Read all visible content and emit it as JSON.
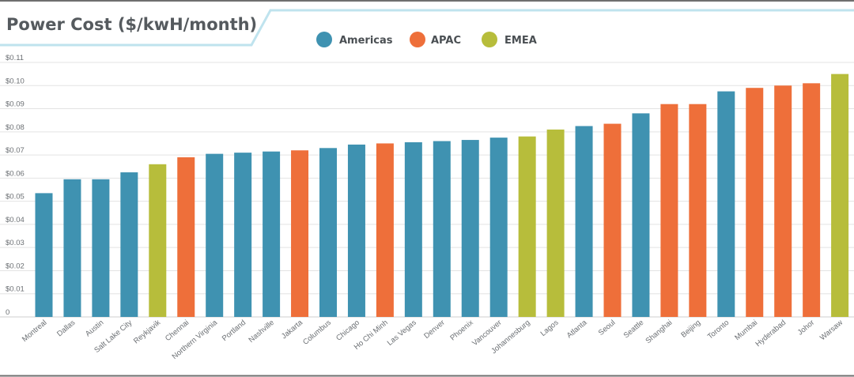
{
  "chart_data": {
    "type": "bar",
    "title": "Power Cost ($/kwH/month)",
    "xlabel": "",
    "ylabel": "",
    "ylim": [
      0,
      0.11
    ],
    "grid": true,
    "legend_position": "top-center",
    "yticks": [
      {
        "value": 0,
        "label": "0"
      },
      {
        "value": 0.01,
        "label": "$0.01"
      },
      {
        "value": 0.02,
        "label": "$0.02"
      },
      {
        "value": 0.03,
        "label": "$0.03"
      },
      {
        "value": 0.04,
        "label": "$0.04"
      },
      {
        "value": 0.05,
        "label": "$0.05"
      },
      {
        "value": 0.06,
        "label": "$0.06"
      },
      {
        "value": 0.07,
        "label": "$0.07"
      },
      {
        "value": 0.08,
        "label": "$0.08"
      },
      {
        "value": 0.09,
        "label": "$0.09"
      },
      {
        "value": 0.1,
        "label": "$0.10"
      },
      {
        "value": 0.11,
        "label": "$0.11"
      }
    ],
    "series": [
      {
        "name": "Americas",
        "color": "#3f92b1"
      },
      {
        "name": "APAC",
        "color": "#ee6f3a"
      },
      {
        "name": "EMEA",
        "color": "#b7bd3b"
      }
    ],
    "categories": [
      "Montreal",
      "Dallas",
      "Austin",
      "Salt Lake City",
      "Reykjavik",
      "Chennai",
      "Northern Virginia",
      "Portland",
      "Nashville",
      "Jakarta",
      "Columbus",
      "Chicago",
      "Ho Chi Minh",
      "Las Vegas",
      "Denver",
      "Phoenix",
      "Vancouver",
      "Johannesburg",
      "Lagos",
      "Atlanta",
      "Seoul",
      "Seattle",
      "Shanghai",
      "Beijing",
      "Toronto",
      "Mumbai",
      "Hyderabad",
      "Johor",
      "Warsaw"
    ],
    "regions": [
      "Americas",
      "Americas",
      "Americas",
      "Americas",
      "EMEA",
      "APAC",
      "Americas",
      "Americas",
      "Americas",
      "APAC",
      "Americas",
      "Americas",
      "APAC",
      "Americas",
      "Americas",
      "Americas",
      "Americas",
      "EMEA",
      "EMEA",
      "Americas",
      "APAC",
      "Americas",
      "APAC",
      "APAC",
      "Americas",
      "APAC",
      "APAC",
      "APAC",
      "EMEA"
    ],
    "values": [
      0.0535,
      0.0595,
      0.0595,
      0.0625,
      0.066,
      0.069,
      0.0705,
      0.071,
      0.0715,
      0.072,
      0.073,
      0.0745,
      0.075,
      0.0755,
      0.076,
      0.0765,
      0.0775,
      0.078,
      0.081,
      0.0825,
      0.0835,
      0.088,
      0.092,
      0.092,
      0.0975,
      0.099,
      0.1,
      0.101,
      0.105
    ]
  }
}
